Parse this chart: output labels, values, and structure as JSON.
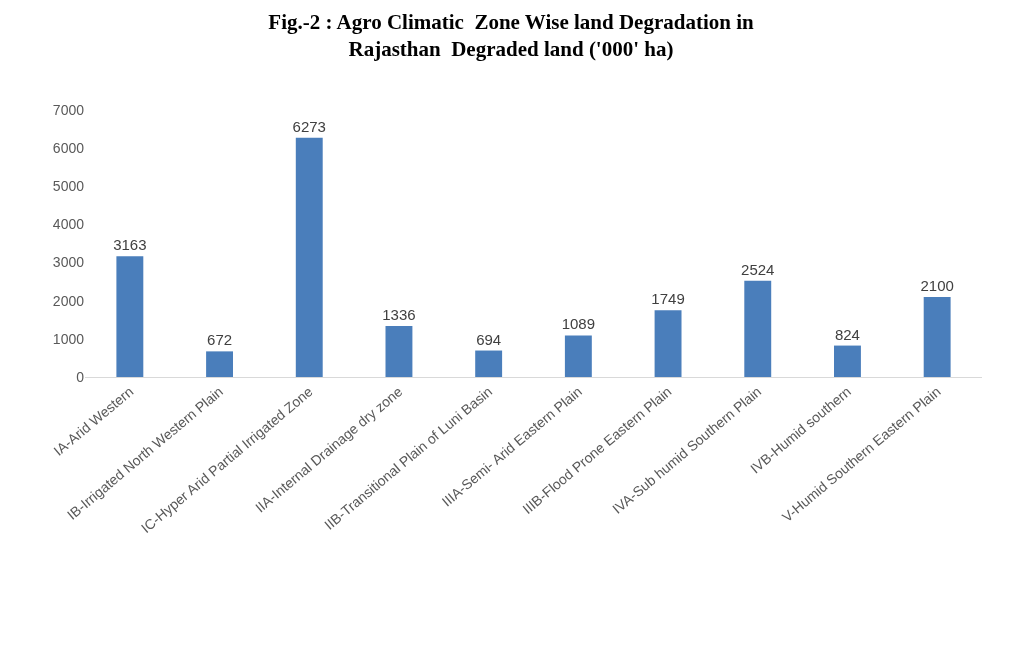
{
  "chart_data": {
    "type": "bar",
    "title": "Fig.-2 : Agro Climatic  Zone Wise land Degradation in\nRajasthan  Degraded land ('000' ha)",
    "categories": [
      "IA-Arid Western",
      "IB-Irrigated North Western Plain",
      "IC-Hyper Arid Partial Irrigated Zone",
      "IIA-Internal Drainage dry zone",
      "IIB-Transitional Plain of Luni Basin",
      "IIIA-Semi- Arid Eastern Plain",
      "IIIB-Flood Prone Eastern Plain",
      "IVA-Sub humid Southern Plain",
      "IVB-Humid southern",
      "V-Humid Southern Eastern Plain"
    ],
    "values": [
      3163,
      672,
      6273,
      1336,
      694,
      1089,
      1749,
      2524,
      824,
      2100
    ],
    "color": "#4a7ebb",
    "ylim": [
      0,
      7000
    ],
    "yticks": [
      0,
      1000,
      2000,
      3000,
      4000,
      5000,
      6000,
      7000
    ],
    "grid": false,
    "data_labels": true
  }
}
